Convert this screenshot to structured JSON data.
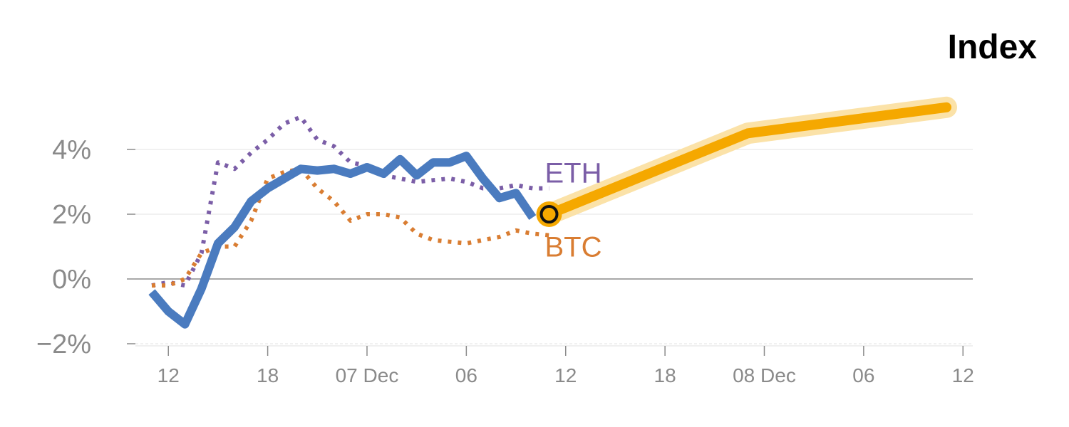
{
  "chart_data": {
    "type": "line",
    "title": "Index",
    "xlabel": "",
    "ylabel": "",
    "ylim": [
      -2,
      6
    ],
    "yticks": [
      -2,
      0,
      2,
      4
    ],
    "ytick_labels": [
      "−2%",
      "0%",
      "2%",
      "4%"
    ],
    "xlim": [
      0,
      48
    ],
    "xticks": [
      1,
      7,
      13,
      19,
      25,
      31,
      37,
      43,
      49
    ],
    "xtick_labels": [
      "12",
      "18",
      "07 Dec",
      "06",
      "12",
      "18",
      "08 Dec",
      "06",
      "12"
    ],
    "grid": true,
    "series": [
      {
        "name": "",
        "style": "solid",
        "color": "#4a7bbf",
        "x": [
          0,
          1,
          2,
          3,
          4,
          5,
          6,
          7,
          8,
          9,
          10,
          11,
          12,
          13,
          14,
          15,
          16,
          17,
          18,
          19,
          20,
          21,
          22,
          23
        ],
        "y": [
          -0.4,
          -1.0,
          -1.4,
          -0.3,
          1.1,
          1.6,
          2.4,
          2.8,
          3.1,
          3.4,
          3.35,
          3.4,
          3.25,
          3.45,
          3.25,
          3.7,
          3.2,
          3.6,
          3.6,
          3.8,
          3.1,
          2.5,
          2.65,
          1.9
        ]
      },
      {
        "name": "ETH",
        "style": "dotted",
        "color": "#7b5ea7",
        "x": [
          0,
          1,
          2,
          3,
          4,
          5,
          6,
          7,
          8,
          9,
          10,
          11,
          12,
          13,
          14,
          15,
          16,
          17,
          18,
          19,
          20,
          21,
          22,
          23,
          24
        ],
        "y": [
          -0.2,
          -0.1,
          -0.2,
          0.8,
          3.6,
          3.4,
          3.9,
          4.3,
          4.8,
          5.0,
          4.3,
          4.1,
          3.6,
          3.5,
          3.2,
          3.1,
          3.0,
          3.05,
          3.1,
          3.0,
          2.8,
          2.8,
          2.9,
          2.8,
          2.8
        ]
      },
      {
        "name": "BTC",
        "style": "dotted",
        "color": "#d97d32",
        "x": [
          0,
          1,
          2,
          3,
          4,
          5,
          6,
          7,
          8,
          9,
          10,
          11,
          12,
          13,
          14,
          15,
          16,
          17,
          18,
          19,
          20,
          21,
          22,
          23,
          24
        ],
        "y": [
          -0.2,
          -0.2,
          0.0,
          0.8,
          1.0,
          1.0,
          1.8,
          3.1,
          3.3,
          3.4,
          2.8,
          2.4,
          1.8,
          2.0,
          2.0,
          1.9,
          1.4,
          1.2,
          1.15,
          1.1,
          1.2,
          1.3,
          1.5,
          1.4,
          1.35
        ]
      },
      {
        "name": "",
        "style": "projection",
        "color": "#f5a800",
        "x": [
          24,
          36,
          48
        ],
        "y": [
          2.0,
          4.5,
          5.3
        ]
      }
    ],
    "marker": {
      "x": 24,
      "y": 2.0,
      "color": "#f5a800"
    }
  }
}
